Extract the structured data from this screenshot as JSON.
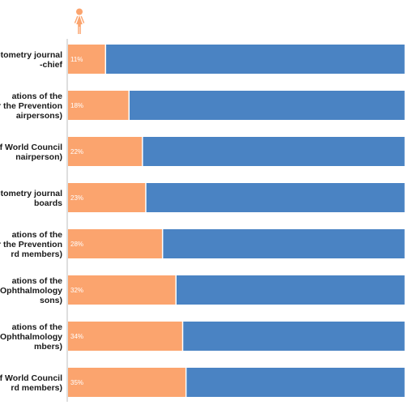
{
  "colors": {
    "women": "#fba46e",
    "men": "#4a83c3",
    "axis": "#bdbdbd",
    "text": "#1a1a1a"
  },
  "header": {
    "women_icon": "female-figure-icon"
  },
  "chart_data": {
    "type": "bar",
    "orientation": "horizontal",
    "stacked": true,
    "percent": true,
    "categories": [
      [
        "ptometry journal",
        "-chief"
      ],
      [
        "ations of the",
        "or the Prevention",
        "airpersons)"
      ],
      [
        "s of World Council",
        "nairperson)"
      ],
      [
        "ptometry journal",
        "boards"
      ],
      [
        "ations of the",
        "or the Prevention",
        "rd members)"
      ],
      [
        "ations of the",
        "Of Ophthalmology",
        "sons)"
      ],
      [
        "ations of the",
        "Of Ophthalmology",
        "mbers)"
      ],
      [
        "s of World Council",
        "rd members)"
      ]
    ],
    "series": [
      {
        "values": [
          11,
          18,
          22,
          23,
          28,
          32,
          34,
          35
        ],
        "labels": [
          "11%",
          "18%",
          "22%",
          "23%",
          "28%",
          "32%",
          "34%",
          "35%"
        ]
      },
      {
        "values": [
          89,
          82,
          78,
          77,
          72,
          68,
          66,
          65
        ]
      }
    ],
    "xlim": [
      0,
      100
    ]
  }
}
